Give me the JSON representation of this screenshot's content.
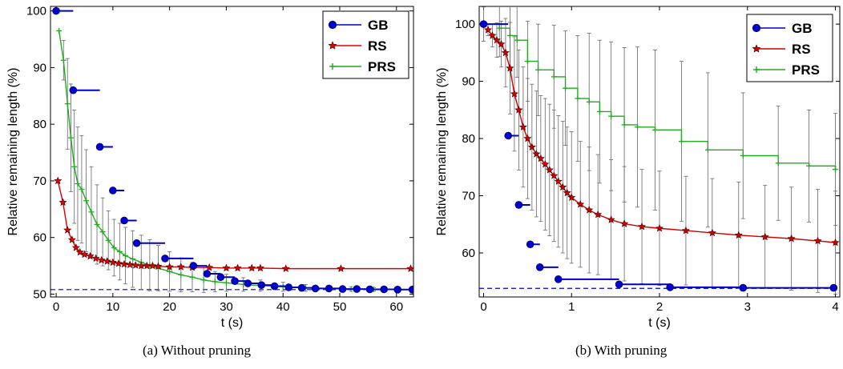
{
  "chart_data": [
    {
      "type": "line",
      "caption": "(a)  Without pruning",
      "xlabel": "t (s)",
      "ylabel": "Relative remaining length (%)",
      "xlim": [
        -1,
        63
      ],
      "ylim": [
        49.5,
        100.8
      ],
      "xticks": [
        0,
        10,
        20,
        30,
        40,
        50,
        60
      ],
      "yticks": [
        50,
        60,
        70,
        80,
        90,
        100
      ],
      "reference_line": 50.8,
      "legend": "top-right",
      "series": [
        {
          "name": "GB",
          "color": "#0000cc",
          "marker": "circle",
          "style": "step",
          "x": [
            0,
            3,
            7.7,
            10,
            12,
            14.2,
            19.2,
            24.2,
            26.6,
            29,
            31.5,
            33.8,
            36.2,
            38.5,
            41,
            43.3,
            45.7,
            48.1,
            50.5,
            53,
            55.3,
            57.8,
            60.2,
            62.8
          ],
          "y": [
            100,
            86,
            76,
            68.3,
            63,
            59,
            56.3,
            55,
            53.6,
            53,
            52.3,
            51.9,
            51.6,
            51.4,
            51.2,
            51.1,
            51.0,
            51.0,
            50.9,
            50.9,
            50.85,
            50.85,
            50.8,
            50.8
          ]
        },
        {
          "name": "RS",
          "color": "#dd0000",
          "marker": "star",
          "style": "curve",
          "x": [
            0.3,
            1.2,
            2,
            2.8,
            3.5,
            4.2,
            5,
            6,
            7,
            8,
            9,
            10,
            11,
            12,
            13,
            14,
            15,
            16,
            17,
            18,
            20,
            22,
            24,
            27,
            30,
            32,
            34.5,
            36,
            40.5,
            50.2,
            62.5
          ],
          "y": [
            70,
            66.2,
            61.3,
            59.6,
            58.2,
            57.4,
            57,
            56.7,
            56.3,
            56,
            55.8,
            55.6,
            55.4,
            55.3,
            55.2,
            55.1,
            55,
            55,
            55,
            54.9,
            54.8,
            54.8,
            54.7,
            54.7,
            54.6,
            54.6,
            54.6,
            54.6,
            54.5,
            54.5,
            54.5
          ]
        },
        {
          "name": "PRS",
          "color": "#22aa22",
          "marker": "plus",
          "style": "curve",
          "x": [
            0.5,
            1.3,
            2,
            2.6,
            3.2,
            3.8,
            4.5,
            5.3,
            6.2,
            7.2,
            8.2,
            9.2,
            10.2,
            11.2,
            12.2,
            13.5,
            15,
            16.5,
            18,
            20,
            22,
            24,
            26,
            28,
            30,
            33,
            36,
            40,
            44,
            48,
            52,
            56,
            60,
            62.5
          ],
          "y": [
            96.5,
            91.3,
            83.6,
            77.6,
            72.5,
            69.5,
            68.5,
            66.5,
            64.5,
            62.3,
            61,
            59.5,
            58.2,
            57.5,
            56.8,
            56.2,
            55.6,
            55.1,
            54.6,
            54,
            53.4,
            53,
            52.5,
            52.2,
            52,
            51.7,
            51.5,
            51.3,
            51.1,
            51,
            50.9,
            50.85,
            50.8,
            50.8
          ],
          "error": [
            0,
            3.5,
            8,
            9.5,
            10,
            10,
            9.5,
            9,
            8,
            7,
            6,
            5.2,
            5,
            5,
            5,
            5,
            4.8,
            4.5,
            4,
            3.5,
            3,
            2.6,
            2.2,
            1.8,
            1.5,
            1.2,
            1,
            0.8,
            0.6,
            0.5,
            0.4,
            0.3,
            0.2,
            0.1
          ]
        }
      ]
    },
    {
      "type": "line",
      "caption": "(b)  With pruning",
      "xlabel": "t (s)",
      "ylabel": "Relative remaining length (%)",
      "xlim": [
        -0.05,
        4.05
      ],
      "ylim": [
        52.3,
        103.1
      ],
      "xticks": [
        0,
        1,
        2,
        3,
        4
      ],
      "yticks": [
        60,
        70,
        80,
        90,
        100
      ],
      "reference_line": 53.8,
      "legend": "top-right",
      "series": [
        {
          "name": "GB",
          "color": "#0000cc",
          "marker": "circle",
          "style": "step",
          "x": [
            0,
            0.28,
            0.4,
            0.53,
            0.64,
            0.85,
            1.54,
            2.12,
            2.95,
            3.98
          ],
          "y": [
            100,
            80.5,
            68.4,
            61.5,
            57.5,
            55.4,
            54.5,
            54,
            53.9,
            53.9
          ]
        },
        {
          "name": "RS",
          "color": "#cc0000",
          "marker": "star",
          "style": "curve",
          "x": [
            0.05,
            0.1,
            0.15,
            0.2,
            0.25,
            0.3,
            0.35,
            0.4,
            0.45,
            0.5,
            0.55,
            0.6,
            0.65,
            0.7,
            0.75,
            0.8,
            0.85,
            0.9,
            0.95,
            1.0,
            1.1,
            1.2,
            1.3,
            1.45,
            1.6,
            1.8,
            2.0,
            2.3,
            2.6,
            2.9,
            3.2,
            3.5,
            3.8,
            4.0
          ],
          "y": [
            99,
            98,
            97.2,
            96.5,
            95,
            92.3,
            87.8,
            85,
            82,
            80,
            78.5,
            77.3,
            76.5,
            75.5,
            74.5,
            73.5,
            72.5,
            71.5,
            70.5,
            69.7,
            68.5,
            67.5,
            66.7,
            65.8,
            65.1,
            64.6,
            64.3,
            63.9,
            63.5,
            63.1,
            62.8,
            62.5,
            62.1,
            61.8
          ],
          "error": [
            1,
            2,
            3,
            4,
            6,
            8,
            10,
            10.5,
            10.5,
            10.5,
            11,
            11,
            11,
            11.5,
            11.5,
            11.5,
            11.5,
            11.5,
            11.5,
            11.5,
            11,
            11,
            10.5,
            10.5,
            10,
            10,
            10,
            9.5,
            9.5,
            9.3,
            9,
            9,
            9,
            9
          ]
        },
        {
          "name": "PRS",
          "color": "#22aa22",
          "marker": "plus",
          "style": "step",
          "x": [
            0,
            0.18,
            0.3,
            0.38,
            0.5,
            0.62,
            0.8,
            0.93,
            1.07,
            1.2,
            1.32,
            1.45,
            1.6,
            1.75,
            1.95,
            2.25,
            2.55,
            2.95,
            3.35,
            3.7,
            4.0
          ],
          "y": [
            100,
            99.3,
            98,
            97.2,
            93.5,
            92,
            90.8,
            88.8,
            87,
            86.4,
            84.7,
            83.9,
            82.4,
            82,
            81.5,
            79.5,
            78,
            77,
            75.7,
            75.2,
            74.6
          ],
          "error": [
            3,
            5,
            6,
            6.5,
            7,
            8,
            9,
            10,
            11,
            12,
            12.5,
            13,
            13.5,
            14,
            14,
            14,
            13.5,
            11,
            10,
            9.8,
            9.8
          ]
        }
      ]
    }
  ]
}
